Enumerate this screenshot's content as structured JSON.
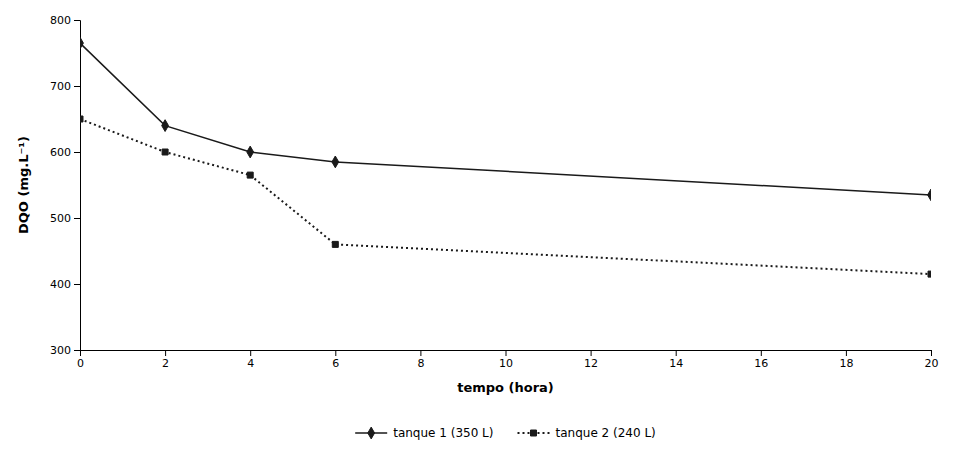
{
  "chart_data": {
    "type": "line",
    "x": [
      0,
      2,
      4,
      6,
      20
    ],
    "series": [
      {
        "name": "tanque 1 (350 L)",
        "color": "#1a1a1a",
        "line_style": "solid",
        "marker": "diamond",
        "values": [
          765,
          640,
          600,
          585,
          535
        ]
      },
      {
        "name": "tanque 2 (240 L)",
        "color": "#1a1a1a",
        "line_style": "dotted",
        "marker": "square",
        "values": [
          650,
          600,
          565,
          460,
          415
        ]
      }
    ],
    "xlabel": "tempo (hora)",
    "ylabel": "DQO (mg.L⁻¹)",
    "xlim": [
      0,
      20
    ],
    "ylim": [
      300,
      800
    ],
    "xticks": [
      0,
      2,
      4,
      6,
      8,
      10,
      12,
      14,
      16,
      18,
      20
    ],
    "yticks": [
      300,
      400,
      500,
      600,
      700,
      800
    ],
    "grid": false,
    "legend": "bottom"
  }
}
